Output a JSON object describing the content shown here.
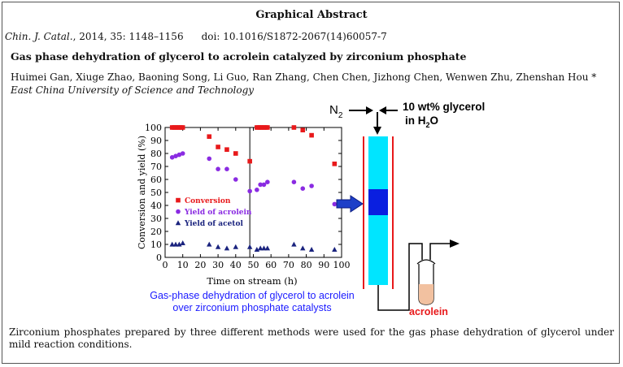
{
  "header": {
    "title": "Graphical Abstract",
    "journal": "Chin. J. Catal.",
    "citation_rest": ", 2014, 35: 1148–1156",
    "doi": "doi: 10.1016/S1872-2067(14)60057-7"
  },
  "article": {
    "title": "Gas phase dehydration of glycerol to acrolein catalyzed by zirconium phosphate",
    "authors": "Huimei Gan, Xiuge Zhao, Baoning Song, Li Guo, Ran Zhang, Chen Chen, Jizhong Chen, Wenwen Zhu, Zhenshan Hou *",
    "affiliation": "East China University of Science and Technology"
  },
  "figure": {
    "caption_line1": "Gas-phase dehydration of glycerol to acrolein",
    "caption_line2": "over zirconium phosphate catalysts",
    "reactor": {
      "gas": "N",
      "gas_sub": "2",
      "feed_line1": "10 wt% glycerol",
      "feed_line2_prefix": "in H",
      "feed_line2_sub": "2",
      "feed_line2_suffix": "O",
      "product": "acrolein"
    },
    "colors": {
      "conversion": "#e8191b",
      "acrolein": "#8a2be2",
      "acetol": "#1a237e",
      "reactor_fill": "#00e5ff",
      "catalyst_bed": "#0a1fe0",
      "arrow": "#1e40c8",
      "product_liquid": "#f2c1a0",
      "product_text": "#e8191b"
    }
  },
  "chart_data": {
    "type": "scatter",
    "xlabel": "Time on stream (h)",
    "ylabel": "Conversion and yield (%)",
    "xlim": [
      0,
      100
    ],
    "ylim": [
      0,
      100
    ],
    "xticks": [
      0,
      10,
      20,
      30,
      40,
      50,
      60,
      70,
      80,
      90,
      100
    ],
    "yticks": [
      0,
      10,
      20,
      30,
      40,
      50,
      60,
      70,
      80,
      90,
      100
    ],
    "divider_x": 48,
    "legend_position": "center-left",
    "series": [
      {
        "name": "Conversion",
        "marker": "square",
        "x": [
          4,
          5,
          6,
          7,
          8,
          9,
          10,
          25,
          30,
          35,
          40,
          48,
          52,
          53,
          54,
          55,
          56,
          57,
          58,
          73,
          78,
          83,
          96
        ],
        "y": [
          100,
          100,
          100,
          100,
          100,
          100,
          100,
          93,
          85,
          83,
          80,
          74,
          100,
          100,
          100,
          100,
          100,
          100,
          100,
          100,
          98,
          94,
          72
        ]
      },
      {
        "name": "Yield of acrolein",
        "marker": "circle",
        "x": [
          4,
          6,
          8,
          10,
          25,
          30,
          35,
          40,
          48,
          52,
          54,
          56,
          58,
          73,
          78,
          83,
          96
        ],
        "y": [
          77,
          78,
          79,
          80,
          76,
          68,
          68,
          60,
          51,
          52,
          56,
          56,
          58,
          58,
          53,
          55,
          41
        ]
      },
      {
        "name": "Yield of acetol",
        "marker": "triangle",
        "x": [
          4,
          6,
          8,
          10,
          25,
          30,
          35,
          40,
          48,
          52,
          54,
          56,
          58,
          73,
          78,
          83,
          96
        ],
        "y": [
          10,
          10,
          10,
          11,
          10,
          8,
          7,
          8,
          8,
          6,
          7,
          7,
          7,
          10,
          7,
          6,
          6
        ]
      }
    ]
  },
  "summary": "Zirconium phosphates prepared by three different methods were used for the gas phase dehydration of glycerol under mild reaction conditions."
}
